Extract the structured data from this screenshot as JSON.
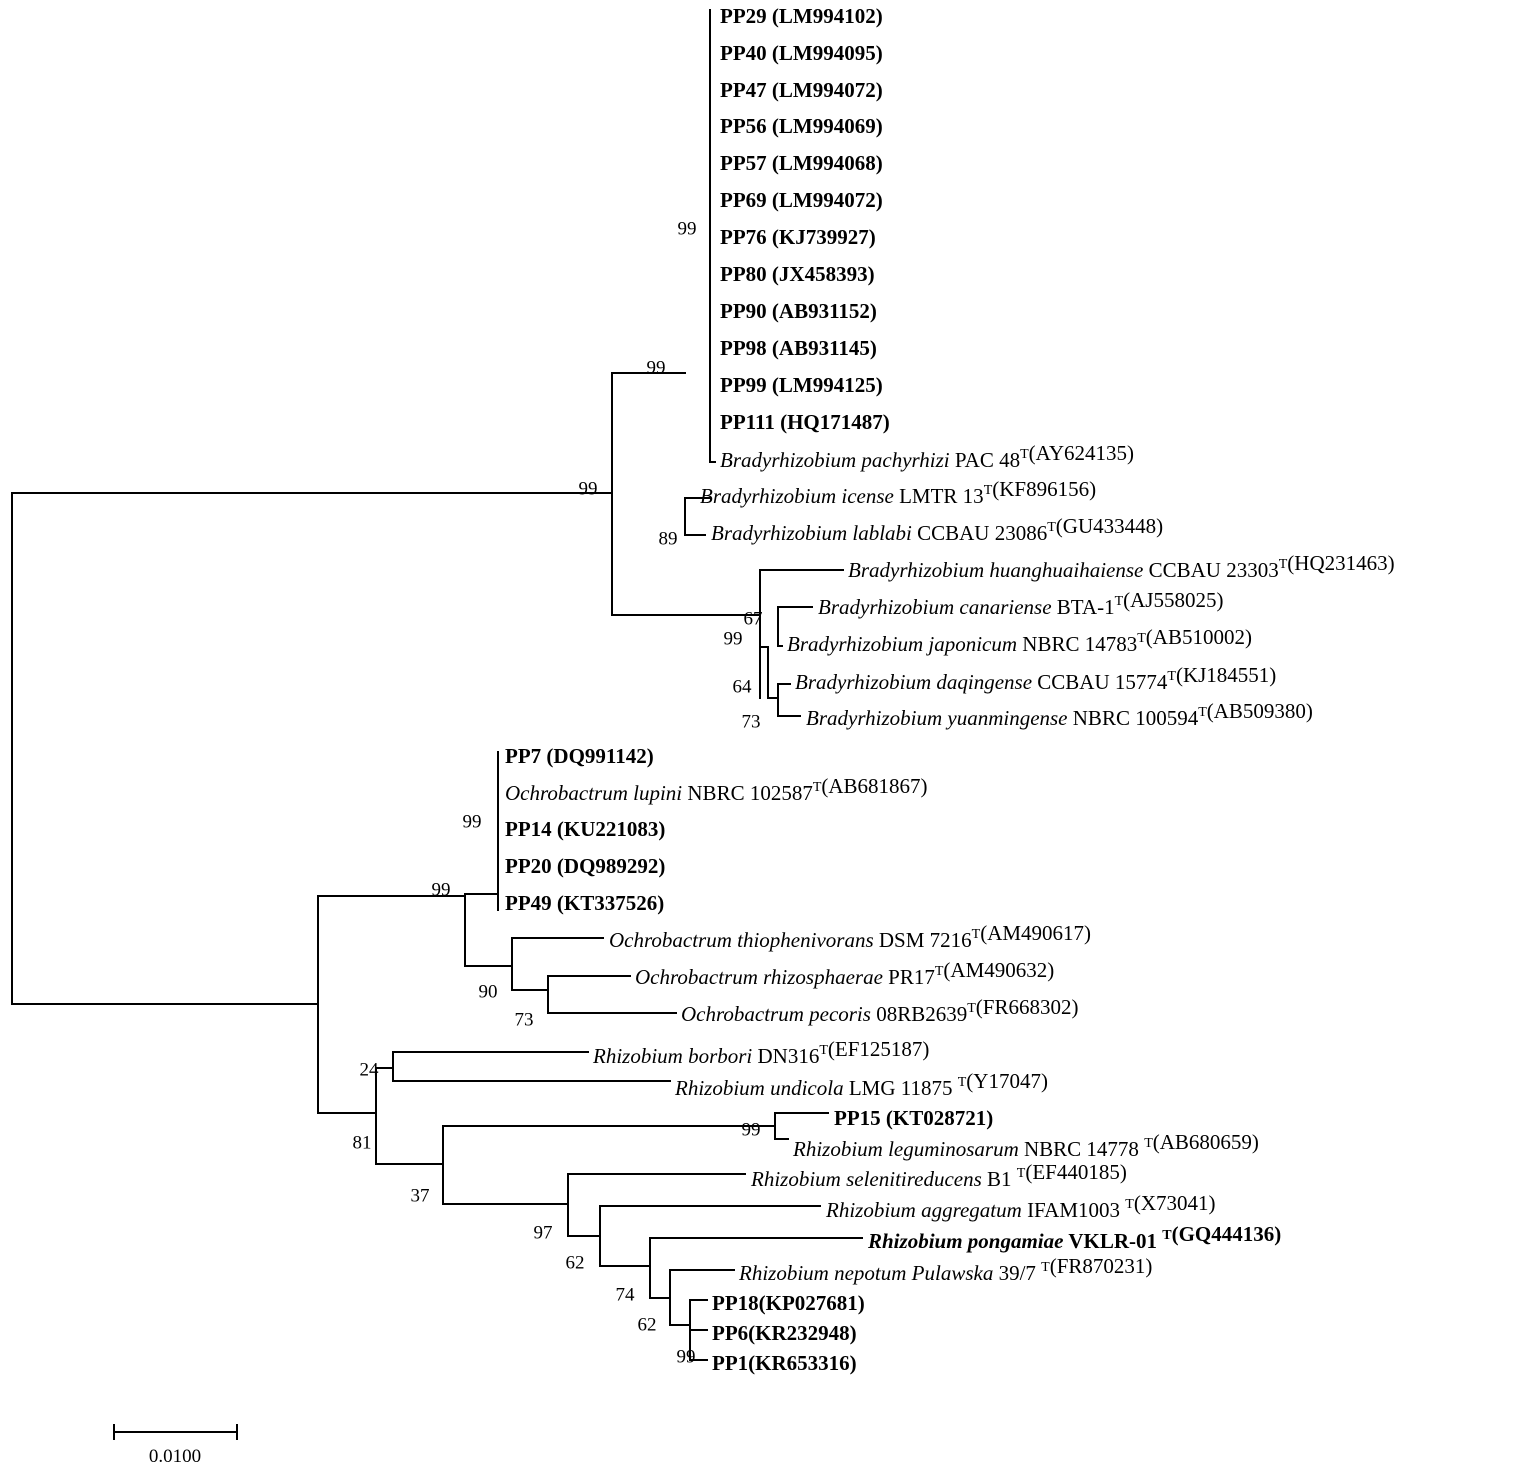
{
  "figure": {
    "taxa": [
      {
        "id": "pp29",
        "parts": [
          {
            "t": "PP29 (LM994102)",
            "b": true
          }
        ]
      },
      {
        "id": "pp40",
        "parts": [
          {
            "t": "PP40 (LM994095)",
            "b": true
          }
        ]
      },
      {
        "id": "pp47",
        "parts": [
          {
            "t": "PP47 (LM994072)",
            "b": true
          }
        ]
      },
      {
        "id": "pp56",
        "parts": [
          {
            "t": "PP56 (LM994069)",
            "b": true
          }
        ]
      },
      {
        "id": "pp57",
        "parts": [
          {
            "t": "PP57 (LM994068)",
            "b": true
          }
        ]
      },
      {
        "id": "pp69",
        "parts": [
          {
            "t": "PP69 (LM994072)",
            "b": true
          }
        ]
      },
      {
        "id": "pp76",
        "parts": [
          {
            "t": "PP76 (KJ739927)",
            "b": true
          }
        ]
      },
      {
        "id": "pp80",
        "parts": [
          {
            "t": "PP80 (JX458393)",
            "b": true
          }
        ]
      },
      {
        "id": "pp90",
        "parts": [
          {
            "t": "PP90 (AB931152)",
            "b": true
          }
        ]
      },
      {
        "id": "pp98",
        "parts": [
          {
            "t": "PP98 (AB931145)",
            "b": true
          }
        ]
      },
      {
        "id": "pp99",
        "parts": [
          {
            "t": "PP99 (LM994125)",
            "b": true
          }
        ]
      },
      {
        "id": "pp111",
        "parts": [
          {
            "t": "PP111 (HQ171487)",
            "b": true
          }
        ]
      },
      {
        "id": "b-pachyrhizi",
        "parts": [
          {
            "t": "Bradyrhizobium pachyrhizi",
            "i": true
          },
          {
            "t": " PAC 48"
          },
          {
            "t": "T",
            "sup": true
          },
          {
            "t": "(AY624135)"
          }
        ]
      },
      {
        "id": "b-icense",
        "parts": [
          {
            "t": "Bradyrhizobium icense",
            "i": true
          },
          {
            "t": " LMTR 13"
          },
          {
            "t": "T",
            "sup": true
          },
          {
            "t": "(KF896156)"
          }
        ]
      },
      {
        "id": "b-lablabi",
        "parts": [
          {
            "t": "Bradyrhizobium lablabi",
            "i": true
          },
          {
            "t": " CCBAU 23086"
          },
          {
            "t": "T",
            "sup": true
          },
          {
            "t": "(GU433448)"
          }
        ]
      },
      {
        "id": "b-huanghuaihaiense",
        "parts": [
          {
            "t": "Bradyrhizobium huanghuaihaiense",
            "i": true
          },
          {
            "t": " CCBAU 23303"
          },
          {
            "t": "T",
            "sup": true
          },
          {
            "t": "(HQ231463)"
          }
        ]
      },
      {
        "id": "b-canariense",
        "parts": [
          {
            "t": "Bradyrhizobium canariense",
            "i": true
          },
          {
            "t": " BTA-1"
          },
          {
            "t": "T",
            "sup": true
          },
          {
            "t": "(AJ558025)"
          }
        ]
      },
      {
        "id": "b-japonicum",
        "parts": [
          {
            "t": "Bradyrhizobium japonicum",
            "i": true
          },
          {
            "t": " NBRC 14783"
          },
          {
            "t": "T",
            "sup": true
          },
          {
            "t": "(AB510002)"
          }
        ]
      },
      {
        "id": "b-daqingense",
        "parts": [
          {
            "t": "Bradyrhizobium daqingense",
            "i": true
          },
          {
            "t": " CCBAU 15774"
          },
          {
            "t": "T",
            "sup": true
          },
          {
            "t": "(KJ184551)"
          }
        ]
      },
      {
        "id": "b-yuanmingense",
        "parts": [
          {
            "t": "Bradyrhizobium yuanmingense",
            "i": true
          },
          {
            "t": " NBRC 100594"
          },
          {
            "t": "T",
            "sup": true
          },
          {
            "t": "(AB509380)"
          }
        ]
      },
      {
        "id": "pp7",
        "parts": [
          {
            "t": "PP7 (DQ991142)",
            "b": true
          }
        ]
      },
      {
        "id": "o-lupini",
        "parts": [
          {
            "t": "Ochrobactrum lupini",
            "i": true
          },
          {
            "t": " NBRC 102587"
          },
          {
            "t": "T",
            "sup": true
          },
          {
            "t": "(AB681867)"
          }
        ]
      },
      {
        "id": "pp14",
        "parts": [
          {
            "t": "PP14 (KU221083)",
            "b": true
          }
        ]
      },
      {
        "id": "pp20",
        "parts": [
          {
            "t": "PP20 (DQ989292)",
            "b": true
          }
        ]
      },
      {
        "id": "pp49",
        "parts": [
          {
            "t": "PP49 (KT337526)",
            "b": true
          }
        ]
      },
      {
        "id": "o-thiophenivorans",
        "parts": [
          {
            "t": "Ochrobactrum thiophenivorans",
            "i": true
          },
          {
            "t": " DSM 7216"
          },
          {
            "t": "T",
            "sup": true
          },
          {
            "t": "(AM490617)"
          }
        ]
      },
      {
        "id": "o-rhizosphaerae",
        "parts": [
          {
            "t": "Ochrobactrum rhizosphaerae",
            "i": true
          },
          {
            "t": " PR17"
          },
          {
            "t": "T",
            "sup": true
          },
          {
            "t": "(AM490632)"
          }
        ]
      },
      {
        "id": "o-pecoris",
        "parts": [
          {
            "t": "Ochrobactrum pecoris",
            "i": true
          },
          {
            "t": " 08RB2639"
          },
          {
            "t": "T",
            "sup": true
          },
          {
            "t": "(FR668302)"
          }
        ]
      },
      {
        "id": "r-borbori",
        "parts": [
          {
            "t": "Rhizobium borbori",
            "i": true
          },
          {
            "t": " DN316"
          },
          {
            "t": "T",
            "sup": true
          },
          {
            "t": "(EF125187)"
          }
        ]
      },
      {
        "id": "r-undicola",
        "parts": [
          {
            "t": "Rhizobium undicola",
            "i": true
          },
          {
            "t": " LMG 11875 "
          },
          {
            "t": "T",
            "sup": true
          },
          {
            "t": "(Y17047)"
          }
        ]
      },
      {
        "id": "pp15",
        "parts": [
          {
            "t": "PP15 (KT028721)",
            "b": true
          }
        ]
      },
      {
        "id": "r-leguminosarum",
        "parts": [
          {
            "t": "Rhizobium leguminosarum",
            "i": true
          },
          {
            "t": " NBRC 14778 "
          },
          {
            "t": "T",
            "sup": true
          },
          {
            "t": "(AB680659)"
          }
        ]
      },
      {
        "id": "r-selenitireducens",
        "parts": [
          {
            "t": "Rhizobium selenitireducens",
            "i": true
          },
          {
            "t": " B1 "
          },
          {
            "t": "T",
            "sup": true
          },
          {
            "t": "(EF440185)"
          }
        ]
      },
      {
        "id": "r-aggregatum",
        "parts": [
          {
            "t": "Rhizobium aggregatum",
            "i": true
          },
          {
            "t": " IFAM1003 "
          },
          {
            "t": "T",
            "sup": true
          },
          {
            "t": "(X73041)"
          }
        ]
      },
      {
        "id": "r-pongamiae",
        "parts": [
          {
            "t": "Rhizobium pongamiae",
            "i": true,
            "b": true
          },
          {
            "t": " VKLR-01 ",
            "b": true
          },
          {
            "t": "T",
            "sup": true,
            "b": true
          },
          {
            "t": "(GQ444136)",
            "b": true
          }
        ]
      },
      {
        "id": "r-nepotum",
        "parts": [
          {
            "t": "Rhizobium nepotum Pulawska",
            "i": true
          },
          {
            "t": " 39/7 "
          },
          {
            "t": "T",
            "sup": true
          },
          {
            "t": "(FR870231)"
          }
        ]
      },
      {
        "id": "pp18",
        "parts": [
          {
            "t": "PP18(KP027681)",
            "b": true
          }
        ]
      },
      {
        "id": "pp6",
        "parts": [
          {
            "t": "PP6(KR232948)",
            "b": true
          }
        ]
      },
      {
        "id": "pp1",
        "parts": [
          {
            "t": "PP1(KR653316)",
            "b": true
          }
        ]
      }
    ],
    "bootstrap_values": [
      {
        "id": "bs-bradyrhizobium-root",
        "value": "99"
      },
      {
        "id": "bs-pachyrhizi-icense",
        "value": "99"
      },
      {
        "id": "bs-pp-strains",
        "value": "99"
      },
      {
        "id": "bs-lablabi",
        "value": "89"
      },
      {
        "id": "bs-huanghuaihaiense",
        "value": "67"
      },
      {
        "id": "bs-japonicum-group",
        "value": "99"
      },
      {
        "id": "bs-daqingense-group",
        "value": "64"
      },
      {
        "id": "bs-yuanmingense",
        "value": "73"
      },
      {
        "id": "bs-lupini-group",
        "value": "99"
      },
      {
        "id": "bs-ochrobactrum",
        "value": "99"
      },
      {
        "id": "bs-thiophenivorans",
        "value": "90"
      },
      {
        "id": "bs-rhizosphaerae",
        "value": "73"
      },
      {
        "id": "bs-borbori",
        "value": "24"
      },
      {
        "id": "bs-rhizobium",
        "value": "81"
      },
      {
        "id": "bs-pp15",
        "value": "99"
      },
      {
        "id": "bs-leguminosarum-group",
        "value": "37"
      },
      {
        "id": "bs-selenitireducens",
        "value": "97"
      },
      {
        "id": "bs-aggregatum",
        "value": "62"
      },
      {
        "id": "bs-pongamiae",
        "value": "74"
      },
      {
        "id": "bs-nepotum",
        "value": "62"
      },
      {
        "id": "bs-pp18-pp6-pp1",
        "value": "99"
      }
    ],
    "scale_bar": {
      "label": "0.0100",
      "value": 0.01
    }
  }
}
